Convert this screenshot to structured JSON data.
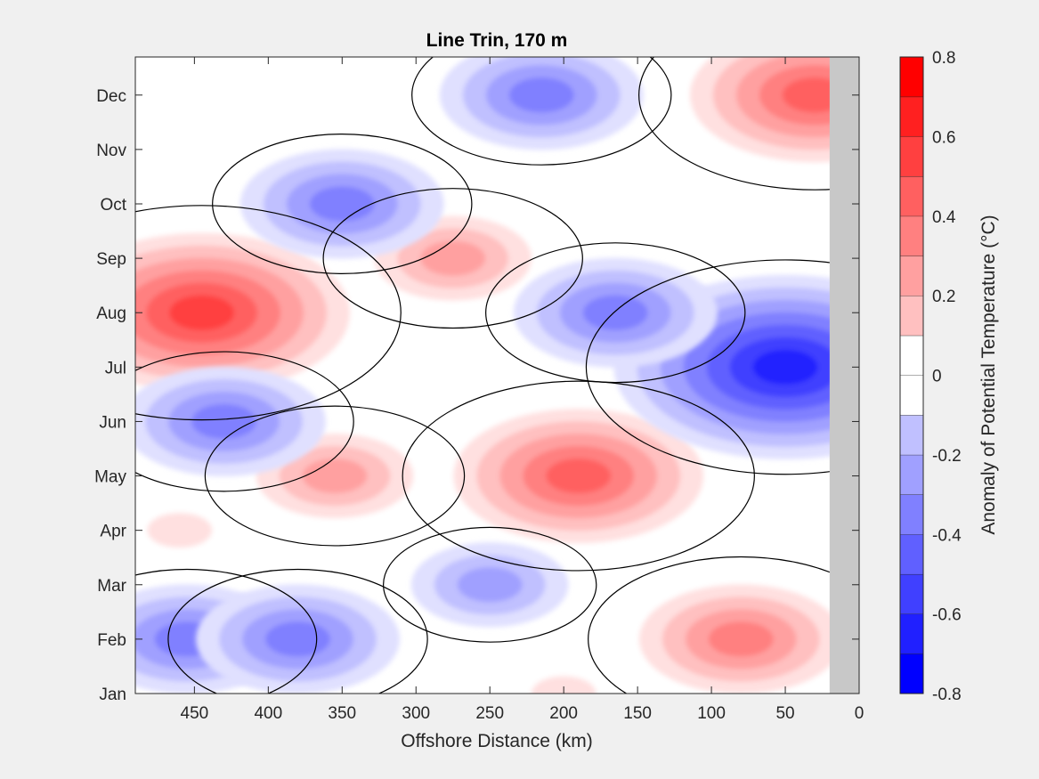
{
  "chart_data": {
    "type": "heatmap",
    "title": "Line Trin, 170 m",
    "xlabel": "Offshore Distance (km)",
    "ylabel": "",
    "colorbar_label": "Anomaly of Potential Temperature (°C)",
    "xlim": [
      490,
      0
    ],
    "xticks": [
      450,
      400,
      350,
      300,
      250,
      200,
      150,
      100,
      50,
      0
    ],
    "ytick_labels": [
      "Jan",
      "Feb",
      "Mar",
      "Apr",
      "May",
      "Jun",
      "Jul",
      "Aug",
      "Sep",
      "Oct",
      "Nov",
      "Dec"
    ],
    "colorbar": {
      "ticks": [
        -0.8,
        -0.6,
        -0.4,
        -0.2,
        0,
        0.2,
        0.4,
        0.6,
        0.8
      ],
      "tick_labels": [
        "-0.8",
        "-0.6",
        "-0.4",
        "-0.2",
        "0",
        "0.2",
        "0.4",
        "0.6",
        "0.8"
      ],
      "levels": [
        -0.8,
        -0.7,
        -0.6,
        -0.5,
        -0.4,
        -0.3,
        -0.2,
        -0.1,
        0,
        0.1,
        0.2,
        0.3,
        0.4,
        0.5,
        0.6,
        0.7,
        0.8
      ],
      "colors": [
        "#0000ff",
        "#2020ff",
        "#4040ff",
        "#6060ff",
        "#8080ff",
        "#a0a0ff",
        "#c0c0ff",
        "#e0e0ff",
        "#ffffff",
        "#ffffff",
        "#ffe0e0",
        "#ffc0c0",
        "#ffa0a0",
        "#ff8080",
        "#ff6060",
        "#ff4040",
        "#ff2020",
        "#ff0000"
      ]
    },
    "zero_contour": true,
    "land_mask_from_km": 20,
    "anomaly_centers": [
      {
        "x_km": 445,
        "month": "Aug",
        "value": 0.7
      },
      {
        "x_km": 275,
        "month": "Sep",
        "value": 0.4
      },
      {
        "x_km": 355,
        "month": "May",
        "value": 0.4
      },
      {
        "x_km": 190,
        "month": "May",
        "value": 0.6
      },
      {
        "x_km": 80,
        "month": "Feb",
        "value": 0.5
      },
      {
        "x_km": 30,
        "month": "Dec",
        "value": 0.6
      },
      {
        "x_km": 200,
        "month": "Jan",
        "value": 0.2
      },
      {
        "x_km": 460,
        "month": "Apr",
        "value": 0.2
      },
      {
        "x_km": 50,
        "month": "Jul",
        "value": -0.7
      },
      {
        "x_km": 430,
        "month": "Jun",
        "value": -0.4
      },
      {
        "x_km": 350,
        "month": "Oct",
        "value": -0.4
      },
      {
        "x_km": 215,
        "month": "Dec",
        "value": -0.4
      },
      {
        "x_km": 165,
        "month": "Aug",
        "value": -0.4
      },
      {
        "x_km": 455,
        "month": "Feb",
        "value": -0.4
      },
      {
        "x_km": 380,
        "month": "Feb",
        "value": -0.4
      },
      {
        "x_km": 250,
        "month": "Mar",
        "value": -0.3
      }
    ]
  }
}
